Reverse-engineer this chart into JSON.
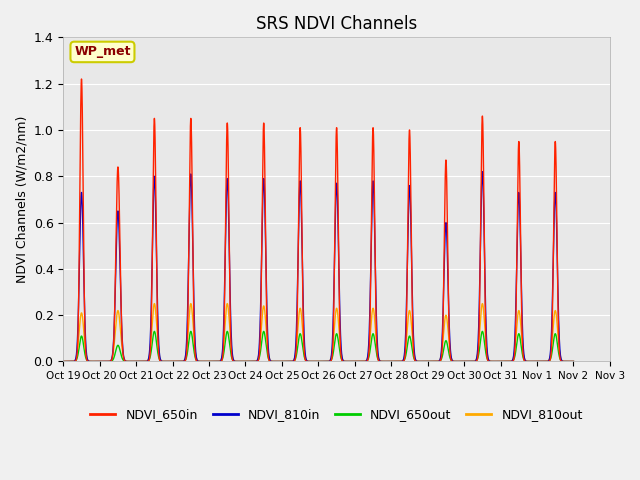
{
  "title": "SRS NDVI Channels",
  "ylabel": "NDVI Channels (W/m2/nm)",
  "xlabel": "",
  "ylim": [
    0,
    1.4
  ],
  "background_color": "#f0f0f0",
  "plot_bg_color": "#e8e8e8",
  "annotation_text": "WP_met",
  "annotation_color": "#8B0000",
  "annotation_bg": "#ffffcc",
  "annotation_border": "#cccc00",
  "series": {
    "NDVI_650in": {
      "color": "#ff2200",
      "linewidth": 1.0,
      "peaks": [
        1.22,
        0.84,
        1.05,
        1.05,
        1.03,
        1.03,
        1.01,
        1.01,
        1.01,
        1.0,
        0.87,
        1.06,
        0.95,
        0.95
      ],
      "widths": [
        0.045,
        0.055,
        0.045,
        0.045,
        0.045,
        0.045,
        0.045,
        0.045,
        0.045,
        0.045,
        0.045,
        0.045,
        0.045,
        0.045
      ]
    },
    "NDVI_810in": {
      "color": "#0000cc",
      "linewidth": 1.0,
      "peaks": [
        0.73,
        0.65,
        0.8,
        0.81,
        0.79,
        0.79,
        0.78,
        0.77,
        0.78,
        0.76,
        0.6,
        0.82,
        0.73,
        0.73
      ],
      "widths": [
        0.055,
        0.06,
        0.055,
        0.055,
        0.055,
        0.055,
        0.055,
        0.055,
        0.055,
        0.055,
        0.055,
        0.055,
        0.055,
        0.055
      ]
    },
    "NDVI_650out": {
      "color": "#00cc00",
      "linewidth": 1.0,
      "peaks": [
        0.11,
        0.07,
        0.13,
        0.13,
        0.13,
        0.13,
        0.12,
        0.12,
        0.12,
        0.11,
        0.09,
        0.13,
        0.12,
        0.12
      ],
      "widths": [
        0.06,
        0.065,
        0.06,
        0.06,
        0.06,
        0.06,
        0.06,
        0.06,
        0.06,
        0.06,
        0.06,
        0.06,
        0.06,
        0.06
      ]
    },
    "NDVI_810out": {
      "color": "#ffaa00",
      "linewidth": 1.0,
      "peaks": [
        0.21,
        0.22,
        0.25,
        0.25,
        0.25,
        0.24,
        0.23,
        0.23,
        0.23,
        0.22,
        0.2,
        0.25,
        0.22,
        0.22
      ],
      "widths": [
        0.065,
        0.07,
        0.065,
        0.065,
        0.065,
        0.065,
        0.065,
        0.065,
        0.065,
        0.065,
        0.065,
        0.065,
        0.065,
        0.065
      ]
    }
  },
  "num_days": 14,
  "xtick_labels": [
    "Oct 19",
    "Oct 20",
    "Oct 21",
    "Oct 22",
    "Oct 23",
    "Oct 24",
    "Oct 25",
    "Oct 26",
    "Oct 27",
    "Oct 28",
    "Oct 29",
    "Oct 30",
    "Oct 31",
    "Nov 1",
    "Nov 2",
    "Nov 3"
  ],
  "xtick_positions": [
    0,
    1,
    2,
    3,
    4,
    5,
    6,
    7,
    8,
    9,
    10,
    11,
    12,
    13,
    14,
    15
  ],
  "legend_entries": [
    "NDVI_650in",
    "NDVI_810in",
    "NDVI_650out",
    "NDVI_810out"
  ],
  "legend_colors": [
    "#ff2200",
    "#0000cc",
    "#00cc00",
    "#ffaa00"
  ],
  "yticks": [
    0.0,
    0.2,
    0.4,
    0.6,
    0.8,
    1.0,
    1.2,
    1.4
  ]
}
